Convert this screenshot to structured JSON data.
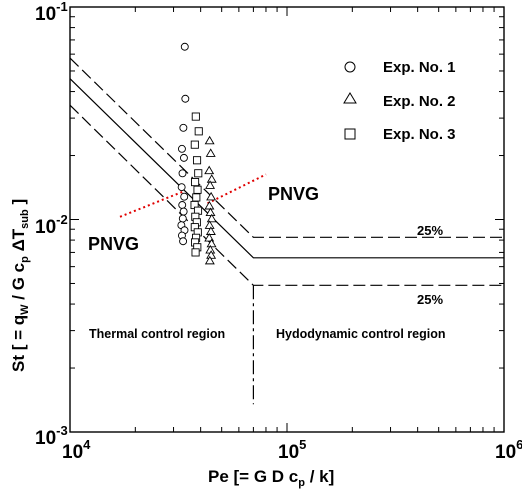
{
  "chart_data": {
    "type": "scatter",
    "x_scale": "log",
    "y_scale": "log",
    "xlim": [
      10000,
      1000000
    ],
    "ylim": [
      0.001,
      0.1
    ],
    "grid": false,
    "legend_placement": "top-right",
    "xlabel": "Pe [= G D c",
    "xlabel_sub": "p",
    "xlabel_tail": " / k]",
    "ylabel": "St  [ = q",
    "ylabel_sub1": "W",
    "ylabel_mid": " / G c",
    "ylabel_sub2": "p",
    "ylabel_mid2": " ΔT",
    "ylabel_sub3": "sub",
    "ylabel_tail": " ]",
    "x_ticks": [
      {
        "value": 10000,
        "base": "10",
        "exp": "4"
      },
      {
        "value": 100000,
        "base": "10",
        "exp": "5"
      },
      {
        "value": 1000000,
        "base": "10",
        "exp": "6"
      }
    ],
    "y_ticks": [
      {
        "value": 0.001,
        "base": "10",
        "exp": "-3"
      },
      {
        "value": 0.01,
        "base": "10",
        "exp": "-2"
      },
      {
        "value": 0.1,
        "base": "10",
        "exp": "-1"
      }
    ],
    "series": [
      {
        "name": "Exp. No. 1",
        "marker": "circle",
        "points": [
          [
            33800,
            0.065
          ],
          [
            34000,
            0.037
          ],
          [
            33300,
            0.027
          ],
          [
            32800,
            0.0215
          ],
          [
            33500,
            0.0195
          ],
          [
            33000,
            0.0165
          ],
          [
            32700,
            0.0142
          ],
          [
            33600,
            0.0128
          ],
          [
            32900,
            0.0117
          ],
          [
            33400,
            0.0109
          ],
          [
            33100,
            0.0101
          ],
          [
            32600,
            0.0094
          ],
          [
            33700,
            0.0089
          ],
          [
            32800,
            0.0084
          ],
          [
            33200,
            0.0079
          ]
        ]
      },
      {
        "name": "Exp. No. 2",
        "marker": "triangle",
        "points": [
          [
            44000,
            0.0235
          ],
          [
            44500,
            0.0205
          ],
          [
            43800,
            0.017
          ],
          [
            45000,
            0.0155
          ],
          [
            44200,
            0.0145
          ],
          [
            44700,
            0.0128
          ],
          [
            43900,
            0.0116
          ],
          [
            44400,
            0.0108
          ],
          [
            45000,
            0.0101
          ],
          [
            44000,
            0.0094
          ],
          [
            44600,
            0.0088
          ],
          [
            43800,
            0.0082
          ],
          [
            44900,
            0.0077
          ],
          [
            44300,
            0.0072
          ],
          [
            44700,
            0.0068
          ],
          [
            44100,
            0.0064
          ]
        ]
      },
      {
        "name": "Exp. No. 3",
        "marker": "square",
        "points": [
          [
            38000,
            0.0305
          ],
          [
            39200,
            0.026
          ],
          [
            37600,
            0.0225
          ],
          [
            38500,
            0.019
          ],
          [
            39000,
            0.0165
          ],
          [
            37700,
            0.015
          ],
          [
            38700,
            0.0138
          ],
          [
            38200,
            0.0127
          ],
          [
            37500,
            0.0117
          ],
          [
            38900,
            0.011
          ],
          [
            37800,
            0.0103
          ],
          [
            38400,
            0.0097
          ],
          [
            37600,
            0.0092
          ],
          [
            38800,
            0.0087
          ],
          [
            38100,
            0.0082
          ],
          [
            37700,
            0.0078
          ],
          [
            38600,
            0.0074
          ],
          [
            37900,
            0.007
          ]
        ]
      }
    ],
    "curves": {
      "correlation": [
        [
          10000,
          0.046
        ],
        [
          70000,
          0.0066
        ],
        [
          1000000,
          0.0066
        ]
      ],
      "upper_25": [
        [
          10000,
          0.0575
        ],
        [
          70000,
          0.00825
        ],
        [
          1000000,
          0.00825
        ]
      ],
      "lower_25": [
        [
          10000,
          0.0345
        ],
        [
          70000,
          0.0049
        ],
        [
          1000000,
          0.0049
        ]
      ],
      "boundary": [
        [
          70000,
          0.0049
        ],
        [
          70000,
          0.00135
        ]
      ],
      "pnvg_1": [
        [
          17000,
          0.0103
        ],
        [
          33000,
          0.0135
        ]
      ],
      "pnvg_2": [
        [
          43000,
          0.0119
        ],
        [
          80000,
          0.0163
        ]
      ]
    },
    "annotations": {
      "pnvg_left": "PNVG",
      "pnvg_right": "PNVG",
      "pct_upper": "25%",
      "pct_lower": "25%",
      "region_left": "Thermal control region",
      "region_right": "Hydodynamic control region"
    }
  }
}
